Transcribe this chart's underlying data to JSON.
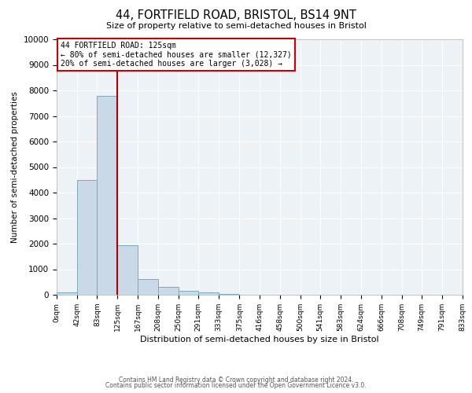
{
  "title": "44, FORTFIELD ROAD, BRISTOL, BS14 9NT",
  "subtitle": "Size of property relative to semi-detached houses in Bristol",
  "xlabel": "Distribution of semi-detached houses by size in Bristol",
  "ylabel": "Number of semi-detached properties",
  "bin_edges": [
    0,
    42,
    83,
    125,
    167,
    208,
    250,
    291,
    333,
    375,
    416,
    458,
    500,
    541,
    583,
    624,
    666,
    708,
    749,
    791,
    833
  ],
  "bin_labels": [
    "0sqm",
    "42sqm",
    "83sqm",
    "125sqm",
    "167sqm",
    "208sqm",
    "250sqm",
    "291sqm",
    "333sqm",
    "375sqm",
    "416sqm",
    "458sqm",
    "500sqm",
    "541sqm",
    "583sqm",
    "624sqm",
    "666sqm",
    "708sqm",
    "749sqm",
    "791sqm",
    "833sqm"
  ],
  "counts": [
    100,
    4500,
    7800,
    1950,
    620,
    300,
    150,
    80,
    20,
    0,
    0,
    0,
    0,
    0,
    0,
    0,
    0,
    0,
    0,
    0
  ],
  "bar_color": "#c9d9e8",
  "bar_edge_color": "#7aaabf",
  "vline_x": 125,
  "vline_color": "#aa0000",
  "ylim": [
    0,
    10000
  ],
  "yticks": [
    0,
    1000,
    2000,
    3000,
    4000,
    5000,
    6000,
    7000,
    8000,
    9000,
    10000
  ],
  "annotation_title": "44 FORTFIELD ROAD: 125sqm",
  "annotation_line1": "← 80% of semi-detached houses are smaller (12,327)",
  "annotation_line2": "20% of semi-detached houses are larger (3,028) →",
  "annotation_box_color": "#cc0000",
  "bg_color": "#edf2f7",
  "grid_color": "#ffffff",
  "footer_line1": "Contains HM Land Registry data © Crown copyright and database right 2024.",
  "footer_line2": "Contains public sector information licensed under the Open Government Licence v3.0."
}
